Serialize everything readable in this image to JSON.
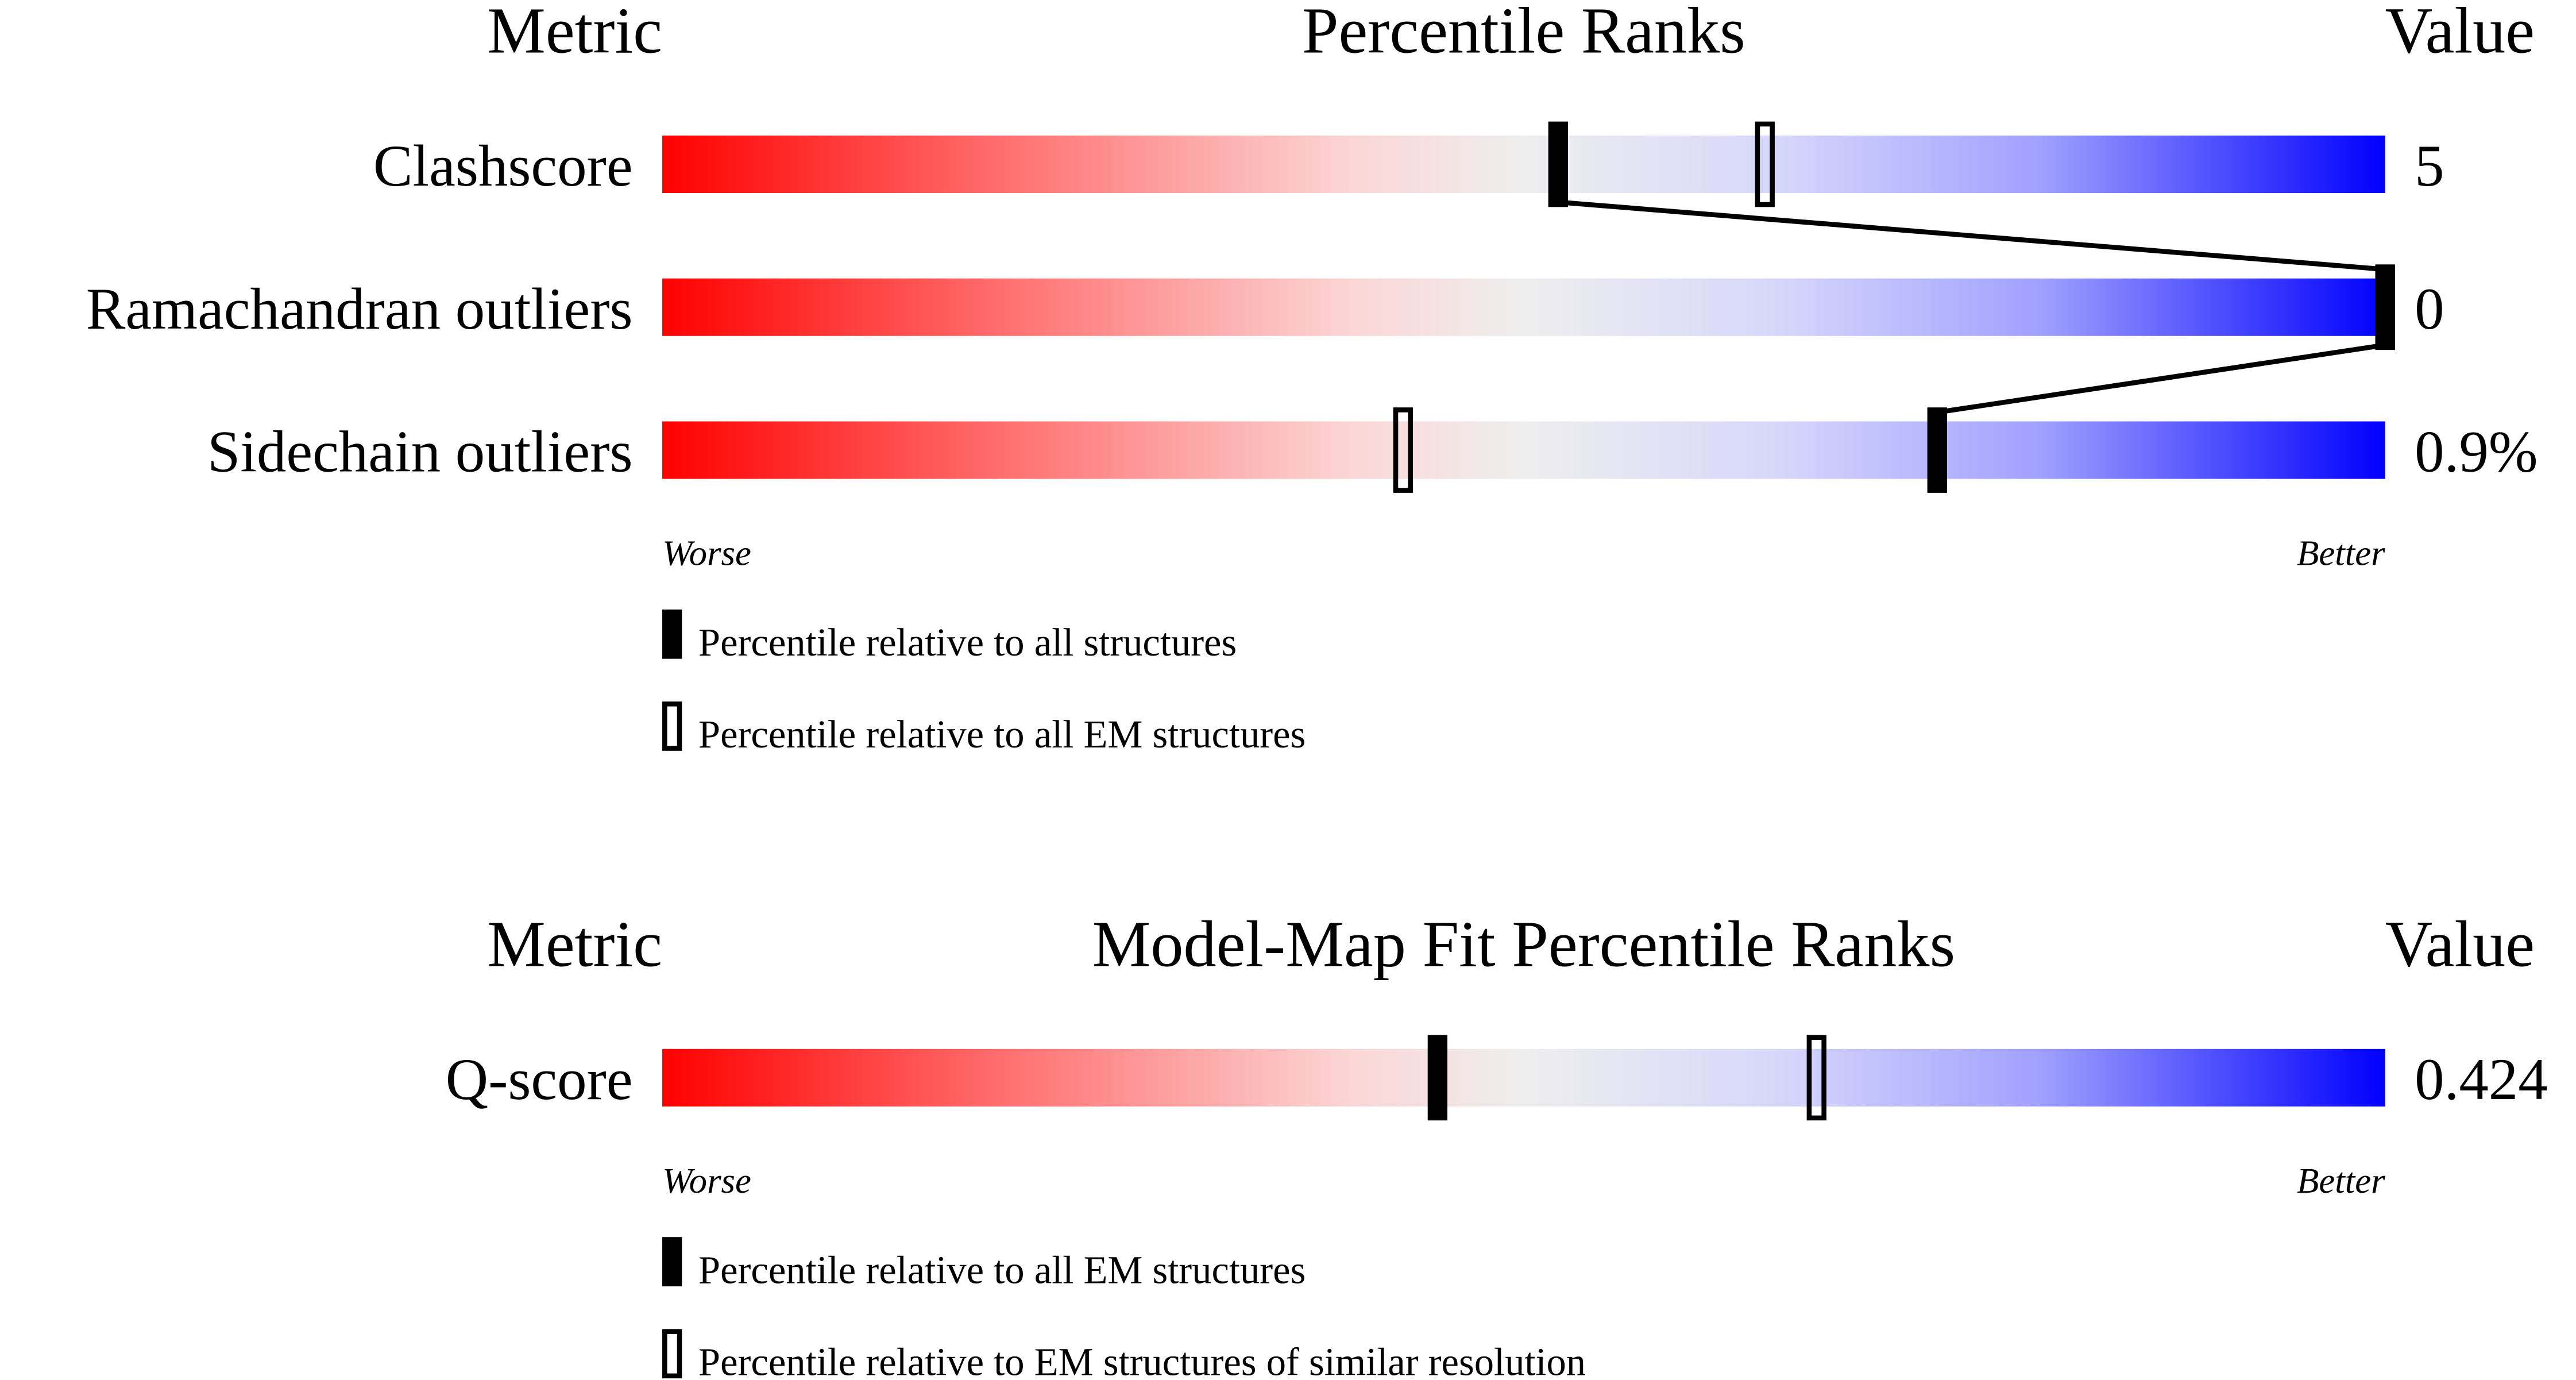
{
  "xlim": [
    0,
    100
  ],
  "panels": [
    {
      "header": {
        "metric": "Metric",
        "title": "Percentile Ranks",
        "value": "Value"
      },
      "rows": [
        {
          "metric": "Clashscore",
          "value": "5",
          "percentile_all": 52,
          "percentile_em": 64
        },
        {
          "metric": "Ramachandran outliers",
          "value": "0",
          "percentile_all": 100,
          "percentile_em": 100
        },
        {
          "metric": "Sidechain outliers",
          "value": "0.9%",
          "percentile_all": 74,
          "percentile_em": 43
        }
      ],
      "worse": "Worse",
      "better": "Better",
      "legend": [
        "Percentile relative to all structures",
        "Percentile relative to all EM structures"
      ]
    },
    {
      "header": {
        "metric": "Metric",
        "title": "Model-Map Fit Percentile Ranks",
        "value": "Value"
      },
      "rows": [
        {
          "metric": "Q-score",
          "value": "0.424",
          "percentile_all": 45,
          "percentile_em": 67
        }
      ],
      "worse": "Worse",
      "better": "Better",
      "legend": [
        "Percentile relative to all EM structures",
        "Percentile relative to EM structures of similar resolution"
      ]
    }
  ]
}
